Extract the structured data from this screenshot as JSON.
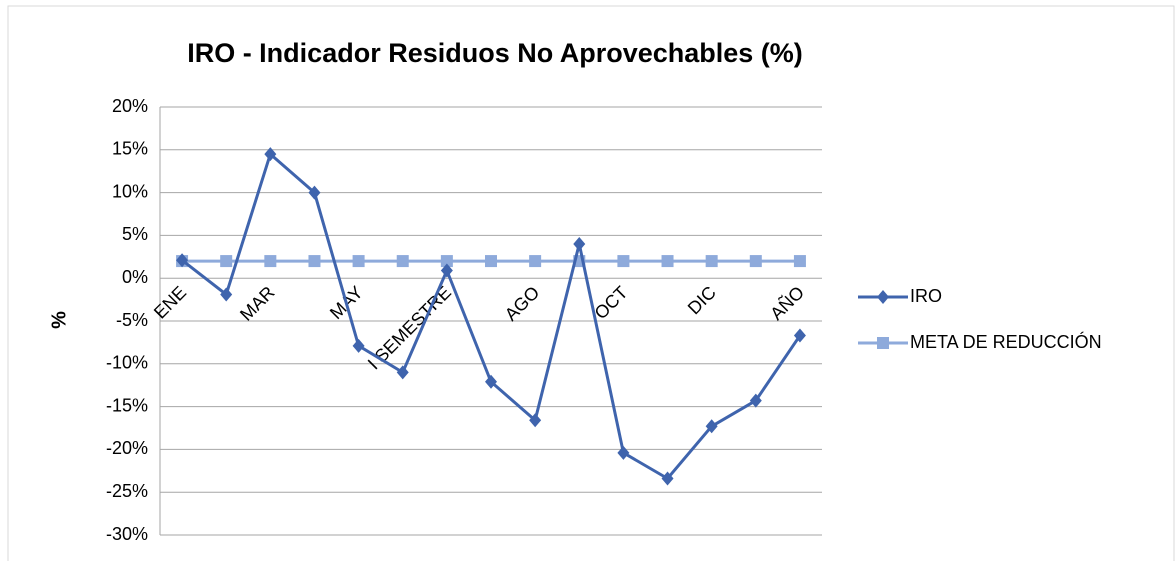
{
  "chart_data": {
    "type": "line",
    "title": "IRO - Indicador Residuos No Aprovechables  (%)",
    "y_label": "%",
    "categories": [
      "ENE",
      null,
      "MAR",
      null,
      "MAY",
      null,
      "I SEMESTRE",
      null,
      "AGO",
      null,
      "OCT",
      null,
      "DIC",
      null,
      "AÑO"
    ],
    "series": [
      {
        "name": "IRO",
        "color": "#3f64ad",
        "marker": "diamond",
        "values": [
          2.1,
          -1.9,
          14.5,
          10.0,
          -7.9,
          -11.0,
          0.9,
          -12.1,
          -16.6,
          4.0,
          -20.4,
          -23.4,
          -17.3,
          -14.3,
          -6.7
        ]
      },
      {
        "name": "META DE REDUCCIÓN",
        "color": "#8eaadb",
        "marker": "square",
        "values": [
          2,
          2,
          2,
          2,
          2,
          2,
          2,
          2,
          2,
          2,
          2,
          2,
          2,
          2,
          2
        ]
      }
    ],
    "ylim": [
      -30,
      20
    ],
    "yticks": [
      {
        "value": -30,
        "label": "-30%"
      },
      {
        "value": -25,
        "label": "-25%"
      },
      {
        "value": -20,
        "label": "-20%"
      },
      {
        "value": -15,
        "label": "-15%"
      },
      {
        "value": -10,
        "label": "-10%"
      },
      {
        "value": -5,
        "label": "-5%"
      },
      {
        "value": 0,
        "label": "0%"
      },
      {
        "value": 5,
        "label": "5%"
      },
      {
        "value": 10,
        "label": "10%"
      },
      {
        "value": 15,
        "label": "15%"
      },
      {
        "value": 20,
        "label": "20%"
      }
    ],
    "grid": true,
    "legend": "right"
  }
}
